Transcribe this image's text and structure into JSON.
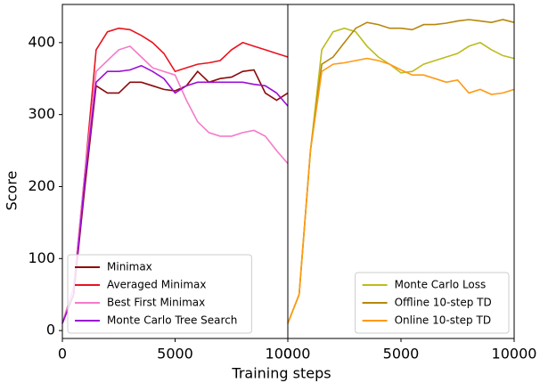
{
  "chart_data": [
    {
      "type": "line",
      "y_label": "Score",
      "x_label": "Training steps",
      "legend": "lower left",
      "xlim": [
        0,
        10000
      ],
      "xticks": [
        0,
        5000,
        10000
      ],
      "ylim": [
        -11,
        453
      ],
      "yticks": [
        0,
        100,
        200,
        300,
        400
      ],
      "x": [
        0,
        500,
        1000,
        1500,
        2000,
        2500,
        3000,
        3500,
        4000,
        4500,
        5000,
        5500,
        6000,
        6500,
        7000,
        7500,
        8000,
        8500,
        9000,
        9500,
        10000
      ],
      "series": [
        {
          "name": "Minimax",
          "color": "#8b0a0a",
          "values": [
            10,
            50,
            200,
            340,
            330,
            330,
            345,
            345,
            340,
            335,
            333,
            340,
            360,
            345,
            350,
            352,
            360,
            362,
            330,
            320,
            330
          ]
        },
        {
          "name": "Averaged Minimax",
          "color": "#e8141e",
          "values": [
            10,
            60,
            220,
            390,
            415,
            420,
            418,
            410,
            400,
            385,
            360,
            365,
            370,
            372,
            375,
            390,
            400,
            395,
            390,
            385,
            380
          ]
        },
        {
          "name": "Best First Minimax",
          "color": "#f57ac8",
          "values": [
            10,
            60,
            220,
            360,
            375,
            390,
            395,
            380,
            365,
            360,
            355,
            320,
            290,
            275,
            270,
            270,
            275,
            278,
            270,
            250,
            232
          ]
        },
        {
          "name": "Monte Carlo Tree Search",
          "color": "#9a0fd6",
          "values": [
            10,
            50,
            210,
            345,
            360,
            360,
            362,
            368,
            360,
            350,
            330,
            340,
            345,
            345,
            345,
            345,
            345,
            342,
            340,
            330,
            312
          ]
        }
      ]
    },
    {
      "type": "line",
      "legend": "lower right",
      "xlim": [
        0,
        10000
      ],
      "xticks": [
        0,
        5000,
        10000
      ],
      "ylim": [
        -11,
        453
      ],
      "x": [
        0,
        500,
        1000,
        1500,
        2000,
        2500,
        3000,
        3500,
        4000,
        4500,
        5000,
        5500,
        6000,
        6500,
        7000,
        7500,
        8000,
        8500,
        9000,
        9500,
        10000
      ],
      "series": [
        {
          "name": "Monte Carlo Loss",
          "color": "#bcbc1e",
          "values": [
            10,
            50,
            250,
            390,
            415,
            420,
            415,
            395,
            380,
            370,
            358,
            360,
            370,
            375,
            380,
            385,
            395,
            400,
            390,
            382,
            378
          ]
        },
        {
          "name": "Offline 10-step TD",
          "color": "#b8860b",
          "values": [
            10,
            50,
            250,
            370,
            380,
            400,
            420,
            428,
            425,
            420,
            420,
            418,
            425,
            425,
            427,
            430,
            432,
            430,
            428,
            432,
            428
          ]
        },
        {
          "name": "Online 10-step TD",
          "color": "#ff9a14",
          "values": [
            10,
            50,
            250,
            360,
            370,
            372,
            375,
            378,
            375,
            370,
            362,
            355,
            355,
            350,
            345,
            348,
            330,
            335,
            328,
            330,
            335
          ]
        }
      ]
    }
  ]
}
